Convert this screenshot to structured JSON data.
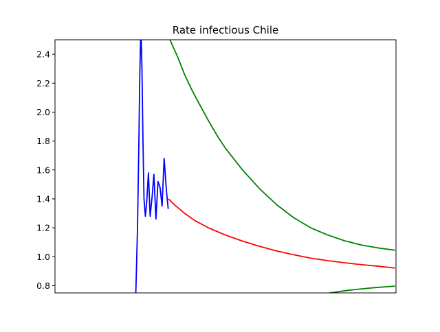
{
  "chart_data": {
    "type": "line",
    "title": "Rate infectious Chile",
    "xlabel": "",
    "ylabel": "",
    "xlim": [
      0,
      100
    ],
    "ylim": [
      0.75,
      2.5
    ],
    "x_ticks_visible": false,
    "y_ticks": [
      0.8,
      1.0,
      1.2,
      1.4,
      1.6,
      1.8,
      2.0,
      2.2,
      2.4
    ],
    "y_tick_labels": [
      "0.8",
      "1.0",
      "1.2",
      "1.4",
      "1.6",
      "1.8",
      "2.0",
      "2.2",
      "2.4"
    ],
    "grid": false,
    "legend": null,
    "series": [
      {
        "color": "#0000ff",
        "points": [
          [
            23.7,
            0.75
          ],
          [
            24.2,
            1.2
          ],
          [
            24.6,
            1.8
          ],
          [
            24.9,
            2.3
          ],
          [
            25.1,
            2.5
          ],
          [
            25.3,
            2.5
          ],
          [
            25.5,
            2.3
          ],
          [
            25.8,
            1.8
          ],
          [
            26.1,
            1.4
          ],
          [
            26.5,
            1.28
          ],
          [
            26.9,
            1.38
          ],
          [
            27.4,
            1.58
          ],
          [
            27.9,
            1.28
          ],
          [
            28.5,
            1.42
          ],
          [
            29.0,
            1.57
          ],
          [
            29.6,
            1.26
          ],
          [
            30.2,
            1.52
          ],
          [
            30.8,
            1.48
          ],
          [
            31.4,
            1.35
          ],
          [
            32.0,
            1.68
          ],
          [
            32.7,
            1.45
          ],
          [
            33.2,
            1.33
          ]
        ]
      },
      {
        "color": "#ff0000",
        "points": [
          [
            33.3,
            1.4
          ],
          [
            35,
            1.36
          ],
          [
            38,
            1.3
          ],
          [
            41,
            1.25
          ],
          [
            45,
            1.2
          ],
          [
            50,
            1.15
          ],
          [
            55,
            1.108
          ],
          [
            60,
            1.072
          ],
          [
            65,
            1.04
          ],
          [
            70,
            1.014
          ],
          [
            75,
            0.99
          ],
          [
            80,
            0.973
          ],
          [
            85,
            0.958
          ],
          [
            90,
            0.945
          ],
          [
            95,
            0.934
          ],
          [
            99.7,
            0.922
          ]
        ]
      },
      {
        "color": "#008000",
        "points": [
          [
            33.7,
            2.5
          ],
          [
            36,
            2.38
          ],
          [
            38,
            2.26
          ],
          [
            40,
            2.16
          ],
          [
            42,
            2.07
          ],
          [
            45,
            1.94
          ],
          [
            48,
            1.82
          ],
          [
            50,
            1.75
          ],
          [
            55,
            1.6
          ],
          [
            60,
            1.47
          ],
          [
            65,
            1.36
          ],
          [
            70,
            1.27
          ],
          [
            75,
            1.2
          ],
          [
            80,
            1.15
          ],
          [
            85,
            1.11
          ],
          [
            90,
            1.08
          ],
          [
            95,
            1.06
          ],
          [
            99.7,
            1.045
          ]
        ]
      },
      {
        "color": "#008000",
        "points": [
          [
            80.5,
            0.75
          ],
          [
            83,
            0.758
          ],
          [
            86,
            0.768
          ],
          [
            90,
            0.778
          ],
          [
            94,
            0.787
          ],
          [
            99.7,
            0.797
          ]
        ]
      }
    ]
  }
}
